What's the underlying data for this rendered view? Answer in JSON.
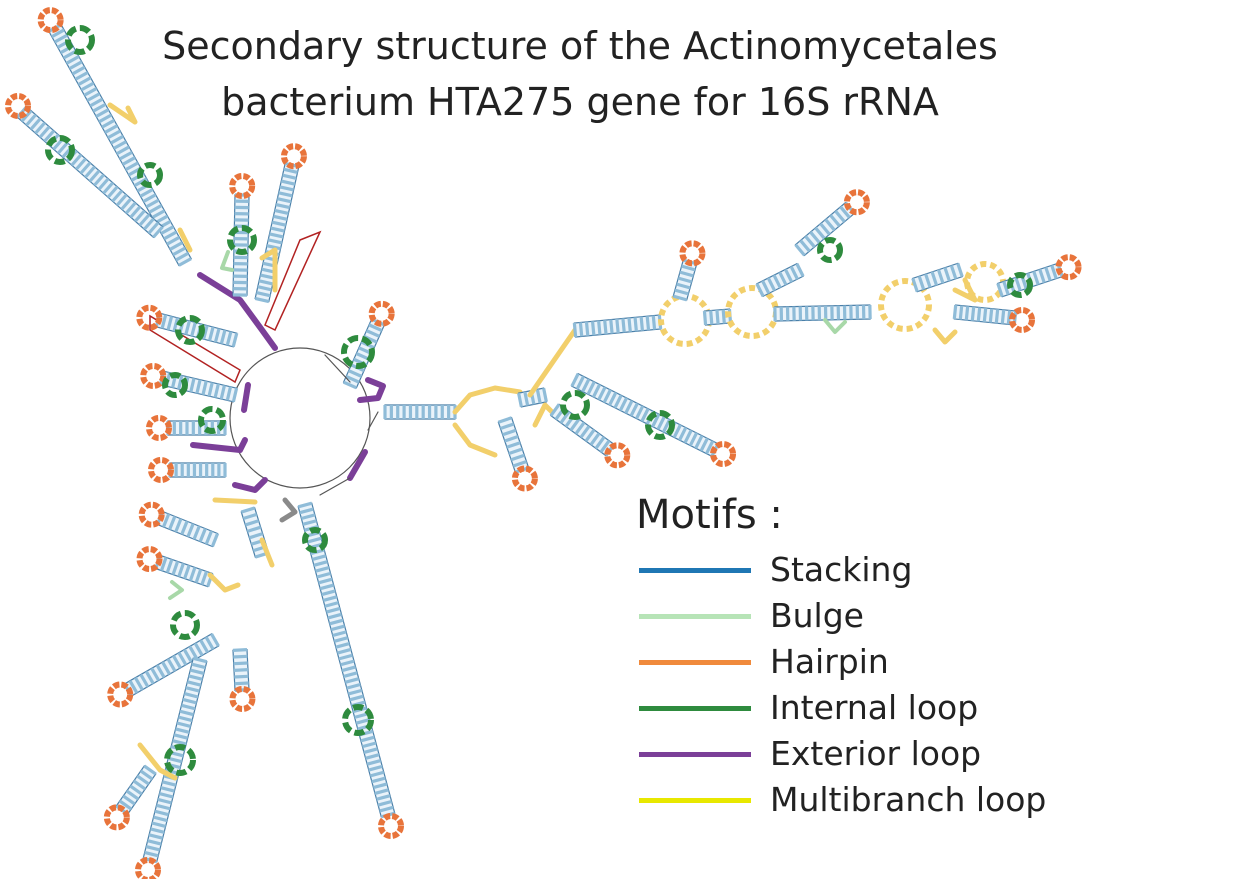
{
  "title": {
    "line1": "Secondary structure of the Actinomycetales",
    "line2": "bacterium HTA275 gene for 16S rRNA"
  },
  "legend": {
    "heading": "Motifs :",
    "items": [
      {
        "label": "Stacking",
        "color": "#1f77b4"
      },
      {
        "label": "Bulge",
        "color": "#b7e4b7"
      },
      {
        "label": "Hairpin",
        "color": "#f08a3c"
      },
      {
        "label": "Internal loop",
        "color": "#2e8b3e"
      },
      {
        "label": "Exterior loop",
        "color": "#7b3f98"
      },
      {
        "label": "Multibranch loop",
        "color": "#e8e800"
      }
    ]
  },
  "motif_colors": {
    "stem_fill": "#8fbcd8",
    "stem_edge": "#4a7fa8",
    "hairpin": "#e8743b",
    "internal_loop": "#2e8b3e",
    "exterior_loop": "#7b3f98",
    "multibranch": "#f2cf6b",
    "bulge": "#a8d8a8",
    "pseudoknot": "#b22222",
    "backbone": "#555555"
  }
}
